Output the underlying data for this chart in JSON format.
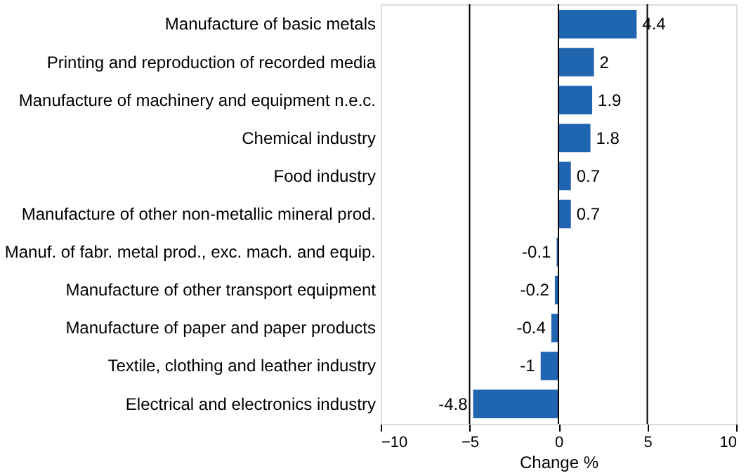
{
  "chart_data": {
    "type": "bar",
    "orientation": "horizontal",
    "xlabel": "Change %",
    "categories": [
      "Manufacture of basic metals",
      "Printing and reproduction of recorded media",
      "Manufacture of machinery and equipment n.e.c.",
      "Chemical industry",
      "Food industry",
      "Manufacture of other non-metallic mineral prod.",
      "Manuf. of fabr. metal prod., exc. mach. and equip.",
      "Manufacture of other transport equipment",
      "Manufacture of paper and paper products",
      "Textile, clothing and leather industry",
      "Electrical and electronics industry"
    ],
    "values": [
      4.4,
      2,
      1.9,
      1.8,
      0.7,
      0.7,
      -0.1,
      -0.2,
      -0.4,
      -1,
      -4.8
    ],
    "color": "#1f65b0",
    "xlim": [
      -10,
      10
    ],
    "xticks": [
      -10,
      -5,
      0,
      5,
      10
    ],
    "grid": "x",
    "data_labels": true
  }
}
